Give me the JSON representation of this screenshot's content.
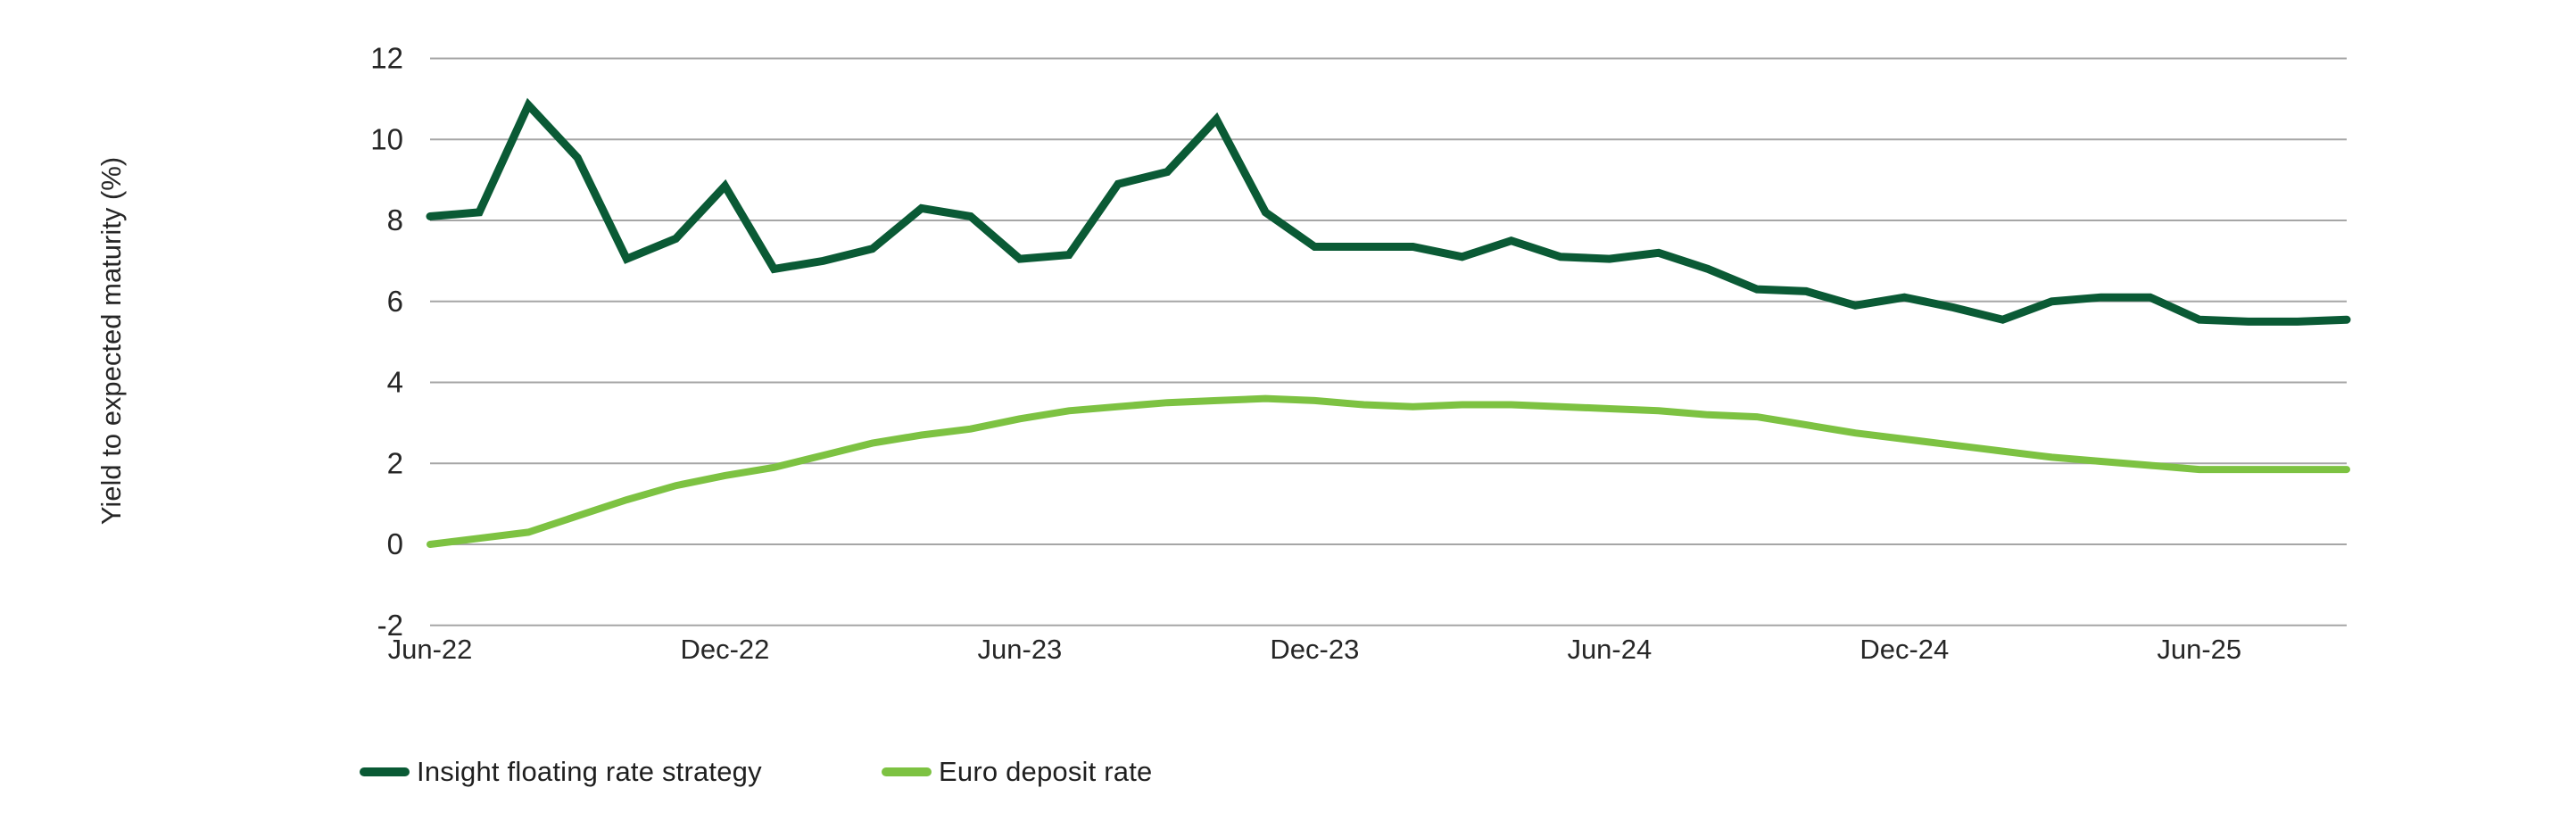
{
  "chart_data": {
    "type": "line",
    "title": "",
    "xlabel": "",
    "ylabel": "Yield to expected maturity (%)",
    "ylim": [
      -2,
      12
    ],
    "grid": "horizontal",
    "legend_position": "bottom",
    "axis_text_color": "#262626",
    "gridline_color": "#a6a6a6",
    "x": [
      "Jun-22",
      "Jul-22",
      "Aug-22",
      "Sep-22",
      "Oct-22",
      "Nov-22",
      "Dec-22",
      "Jan-23",
      "Feb-23",
      "Mar-23",
      "Apr-23",
      "May-23",
      "Jun-23",
      "Jul-23",
      "Aug-23",
      "Sep-23",
      "Oct-23",
      "Nov-23",
      "Dec-23",
      "Jan-24",
      "Feb-24",
      "Mar-24",
      "Apr-24",
      "May-24",
      "Jun-24",
      "Jul-24",
      "Aug-24",
      "Sep-24",
      "Oct-24",
      "Nov-24",
      "Dec-24",
      "Jan-25",
      "Feb-25",
      "Mar-25",
      "Apr-25",
      "May-25",
      "Jun-25",
      "Jul-25",
      "Aug-25",
      "Sep-25"
    ],
    "x_ticks": [
      {
        "label": "Jun-22",
        "index": 0
      },
      {
        "label": "Dec-22",
        "index": 6
      },
      {
        "label": "Jun-23",
        "index": 12
      },
      {
        "label": "Dec-23",
        "index": 18
      },
      {
        "label": "Jun-24",
        "index": 24
      },
      {
        "label": "Dec-24",
        "index": 30
      },
      {
        "label": "Jun-25",
        "index": 36
      }
    ],
    "y_ticks": [
      {
        "label": "12",
        "value": 12
      },
      {
        "label": "10",
        "value": 10
      },
      {
        "label": "8",
        "value": 8
      },
      {
        "label": "6",
        "value": 6
      },
      {
        "label": "4",
        "value": 4
      },
      {
        "label": "2",
        "value": 2
      },
      {
        "label": "0",
        "value": 0
      },
      {
        "label": "-2",
        "value": -2
      }
    ],
    "series": [
      {
        "name": "Insight floating rate strategy",
        "color": "#0a5a35",
        "stroke_width": 9,
        "values": [
          8.1,
          8.2,
          10.85,
          9.55,
          7.05,
          7.55,
          8.85,
          6.8,
          7.0,
          7.3,
          8.3,
          8.1,
          7.05,
          7.15,
          8.9,
          9.2,
          10.5,
          8.2,
          7.35,
          7.35,
          7.35,
          7.1,
          7.5,
          7.1,
          7.05,
          7.2,
          6.8,
          6.3,
          6.25,
          5.9,
          6.1,
          5.85,
          5.55,
          6.0,
          6.1,
          6.1,
          5.55,
          5.5,
          5.5,
          5.55
        ]
      },
      {
        "name": "Euro deposit rate",
        "color": "#7dc242",
        "stroke_width": 8,
        "values": [
          0.0,
          0.15,
          0.3,
          0.7,
          1.1,
          1.45,
          1.7,
          1.9,
          2.2,
          2.5,
          2.7,
          2.85,
          3.1,
          3.3,
          3.4,
          3.5,
          3.55,
          3.6,
          3.55,
          3.45,
          3.4,
          3.45,
          3.45,
          3.4,
          3.35,
          3.3,
          3.2,
          3.15,
          2.95,
          2.75,
          2.6,
          2.45,
          2.3,
          2.15,
          2.05,
          1.95,
          1.85,
          1.85,
          1.85,
          1.85
        ]
      }
    ]
  },
  "legend": {
    "items": [
      {
        "label": "Insight floating rate strategy"
      },
      {
        "label": "Euro deposit rate"
      }
    ]
  }
}
